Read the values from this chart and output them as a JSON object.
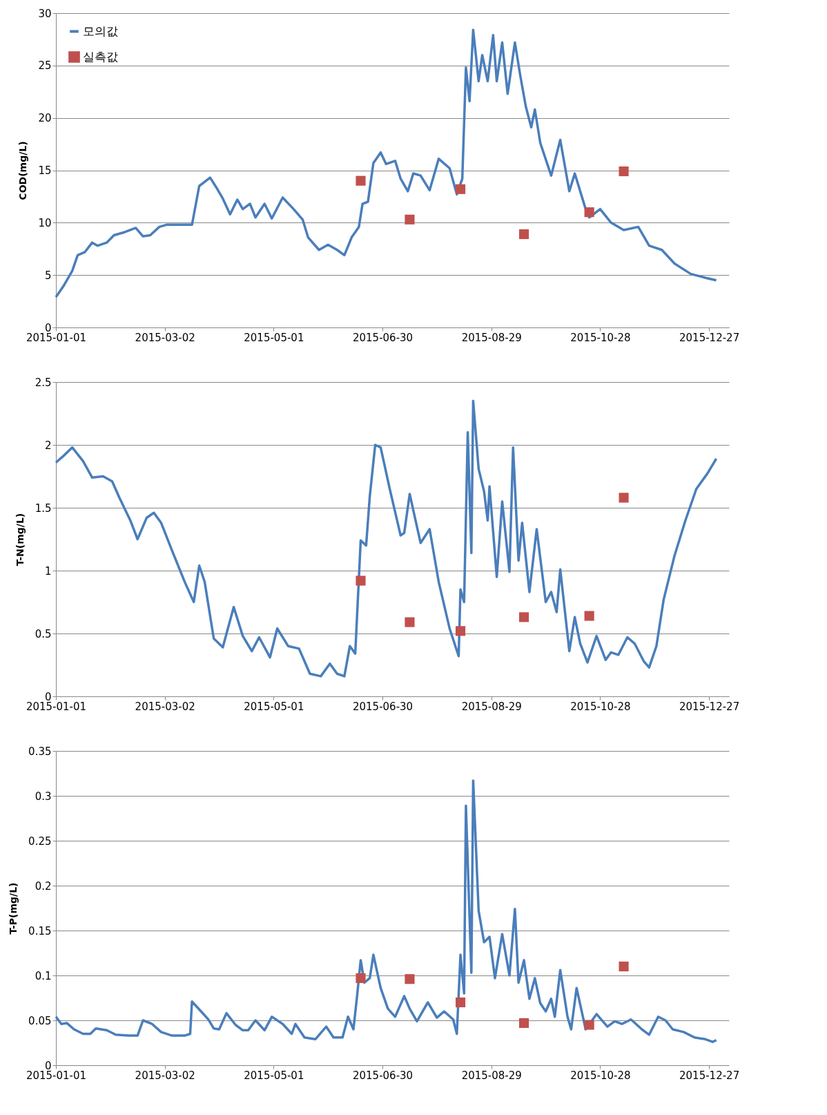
{
  "chart_data": [
    {
      "type": "line",
      "ylabel": "COD(mg/L)",
      "xlim": [
        "2015-01-01",
        "2016-01-07"
      ],
      "xticks": [
        "2015-01-01",
        "2015-03-02",
        "2015-05-01",
        "2015-06-30",
        "2015-08-29",
        "2015-10-28",
        "2015-12-27"
      ],
      "ylim": [
        0,
        30
      ],
      "yticks": [
        0,
        5,
        10,
        15,
        20,
        25,
        30
      ],
      "grid": "y",
      "legend": "top left",
      "series": [
        {
          "name": "모의값",
          "type": "line",
          "marker": "none",
          "color": "#4a7ebb",
          "x": [
            "2015-01-01",
            "2015-01-05",
            "2015-01-10",
            "2015-01-13",
            "2015-01-17",
            "2015-01-21",
            "2015-01-24",
            "2015-01-29",
            "2015-02-02",
            "2015-02-08",
            "2015-02-14",
            "2015-02-18",
            "2015-02-22",
            "2015-02-27",
            "2015-03-03",
            "2015-03-12",
            "2015-03-17",
            "2015-03-21",
            "2015-03-27",
            "2015-03-31",
            "2015-04-03",
            "2015-04-07",
            "2015-04-11",
            "2015-04-14",
            "2015-04-18",
            "2015-04-21",
            "2015-04-26",
            "2015-04-30",
            "2015-05-06",
            "2015-05-12",
            "2015-05-17",
            "2015-05-20",
            "2015-05-26",
            "2015-05-31",
            "2015-06-05",
            "2015-06-09",
            "2015-06-13",
            "2015-06-17",
            "2015-06-19",
            "2015-06-22",
            "2015-06-25",
            "2015-06-29",
            "2015-07-02",
            "2015-07-07",
            "2015-07-10",
            "2015-07-14",
            "2015-07-17",
            "2015-07-21",
            "2015-07-26",
            "2015-07-31",
            "2015-08-06",
            "2015-08-10",
            "2015-08-13",
            "2015-08-15",
            "2015-08-17",
            "2015-08-19",
            "2015-08-22",
            "2015-08-24",
            "2015-08-27",
            "2015-08-30",
            "2015-09-01",
            "2015-09-04",
            "2015-09-07",
            "2015-09-11",
            "2015-09-14",
            "2015-09-17",
            "2015-09-20",
            "2015-09-22",
            "2015-09-25",
            "2015-10-01",
            "2015-10-06",
            "2015-10-11",
            "2015-10-14",
            "2015-10-20",
            "2015-10-22",
            "2015-10-28",
            "2015-11-03",
            "2015-11-10",
            "2015-11-18",
            "2015-11-24",
            "2015-12-01",
            "2015-12-08",
            "2015-12-17",
            "2015-12-26",
            "2015-12-31"
          ],
          "values": [
            2.9,
            3.9,
            5.4,
            6.9,
            7.2,
            8.1,
            7.8,
            8.1,
            8.8,
            9.1,
            9.5,
            8.7,
            8.8,
            9.6,
            9.8,
            9.8,
            9.8,
            13.5,
            14.3,
            13.2,
            12.3,
            10.8,
            12.2,
            11.3,
            11.8,
            10.5,
            11.8,
            10.4,
            12.4,
            11.3,
            10.3,
            8.6,
            7.4,
            7.9,
            7.4,
            6.9,
            8.6,
            9.6,
            11.8,
            12.0,
            15.7,
            16.7,
            15.6,
            15.9,
            14.2,
            13.0,
            14.7,
            14.5,
            13.1,
            16.1,
            15.2,
            12.7,
            14.2,
            24.8,
            21.6,
            28.4,
            23.5,
            26.0,
            23.5,
            27.9,
            23.5,
            27.2,
            22.3,
            27.2,
            24.0,
            21.1,
            19.1,
            20.8,
            17.6,
            14.5,
            17.9,
            13.0,
            14.7,
            11.3,
            10.5,
            11.3,
            10.0,
            9.3,
            9.6,
            7.8,
            7.4,
            6.1,
            5.1,
            4.7,
            4.5
          ]
        },
        {
          "name": "실측값",
          "type": "scatter",
          "marker": "square",
          "color": "#c0504d",
          "x": [
            "2015-06-18",
            "2015-07-15",
            "2015-08-12",
            "2015-09-16",
            "2015-10-22",
            "2015-11-10"
          ],
          "values": [
            14.0,
            10.3,
            13.2,
            8.9,
            11.0,
            14.9
          ]
        }
      ]
    },
    {
      "type": "line",
      "ylabel": "T-N(mg/L)",
      "xlim": [
        "2015-01-01",
        "2016-01-07"
      ],
      "xticks": [
        "2015-01-01",
        "2015-03-02",
        "2015-05-01",
        "2015-06-30",
        "2015-08-29",
        "2015-10-28",
        "2015-12-27"
      ],
      "ylim": [
        0,
        2.5
      ],
      "yticks": [
        0,
        0.5,
        1,
        1.5,
        2,
        2.5
      ],
      "grid": "y",
      "legend": "top left",
      "series": [
        {
          "name": "모의값",
          "type": "line",
          "marker": "none",
          "color": "#4a7ebb",
          "x": [
            "2015-01-01",
            "2015-01-05",
            "2015-01-10",
            "2015-01-16",
            "2015-01-21",
            "2015-01-27",
            "2015-02-01",
            "2015-02-05",
            "2015-02-11",
            "2015-02-15",
            "2015-02-20",
            "2015-02-24",
            "2015-02-28",
            "2015-03-06",
            "2015-03-13",
            "2015-03-18",
            "2015-03-21",
            "2015-03-24",
            "2015-03-29",
            "2015-04-03",
            "2015-04-09",
            "2015-04-14",
            "2015-04-19",
            "2015-04-23",
            "2015-04-29",
            "2015-05-03",
            "2015-05-09",
            "2015-05-15",
            "2015-05-21",
            "2015-05-27",
            "2015-06-01",
            "2015-06-05",
            "2015-06-09",
            "2015-06-12",
            "2015-06-15",
            "2015-06-18",
            "2015-06-21",
            "2015-06-23",
            "2015-06-26",
            "2015-06-29",
            "2015-07-04",
            "2015-07-10",
            "2015-07-12",
            "2015-07-15",
            "2015-07-21",
            "2015-07-26",
            "2015-07-31",
            "2015-08-06",
            "2015-08-11",
            "2015-08-12",
            "2015-08-14",
            "2015-08-16",
            "2015-08-18",
            "2015-08-19",
            "2015-08-22",
            "2015-08-25",
            "2015-08-27",
            "2015-08-28",
            "2015-09-01",
            "2015-09-04",
            "2015-09-08",
            "2015-09-10",
            "2015-09-13",
            "2015-09-15",
            "2015-09-19",
            "2015-09-23",
            "2015-09-28",
            "2015-10-01",
            "2015-10-04",
            "2015-10-06",
            "2015-10-11",
            "2015-10-14",
            "2015-10-17",
            "2015-10-21",
            "2015-10-26",
            "2015-10-31",
            "2015-11-03",
            "2015-11-07",
            "2015-11-12",
            "2015-11-16",
            "2015-11-21",
            "2015-11-24",
            "2015-11-28",
            "2015-12-02",
            "2015-12-08",
            "2015-12-14",
            "2015-12-20",
            "2015-12-26",
            "2015-12-31"
          ],
          "values": [
            1.86,
            1.91,
            1.98,
            1.87,
            1.74,
            1.75,
            1.71,
            1.58,
            1.4,
            1.25,
            1.42,
            1.46,
            1.38,
            1.16,
            0.91,
            0.75,
            1.04,
            0.91,
            0.46,
            0.39,
            0.71,
            0.48,
            0.36,
            0.47,
            0.31,
            0.54,
            0.4,
            0.38,
            0.18,
            0.16,
            0.26,
            0.18,
            0.16,
            0.4,
            0.34,
            1.24,
            1.2,
            1.59,
            2.0,
            1.98,
            1.65,
            1.28,
            1.3,
            1.61,
            1.22,
            1.33,
            0.91,
            0.54,
            0.32,
            0.85,
            0.75,
            2.1,
            1.14,
            2.35,
            1.81,
            1.63,
            1.4,
            1.67,
            0.95,
            1.55,
            0.99,
            1.98,
            1.08,
            1.38,
            0.83,
            1.33,
            0.75,
            0.83,
            0.67,
            1.01,
            0.36,
            0.63,
            0.42,
            0.27,
            0.48,
            0.29,
            0.35,
            0.33,
            0.47,
            0.42,
            0.28,
            0.23,
            0.4,
            0.77,
            1.12,
            1.4,
            1.65,
            1.77,
            1.89
          ]
        },
        {
          "name": "실측값",
          "type": "scatter",
          "marker": "square",
          "color": "#c0504d",
          "x": [
            "2015-06-18",
            "2015-07-15",
            "2015-08-12",
            "2015-09-16",
            "2015-10-22",
            "2015-11-10"
          ],
          "values": [
            0.92,
            0.59,
            0.52,
            0.63,
            0.64,
            1.58
          ]
        }
      ]
    },
    {
      "type": "line",
      "ylabel": "T-P(mg/L)",
      "xlim": [
        "2015-01-01",
        "2016-01-07"
      ],
      "xticks": [
        "2015-01-01",
        "2015-03-02",
        "2015-05-01",
        "2015-06-30",
        "2015-08-29",
        "2015-10-28",
        "2015-12-27"
      ],
      "ylim": [
        0,
        0.35
      ],
      "yticks": [
        0,
        0.05,
        0.1,
        0.15,
        0.2,
        0.25,
        0.3,
        0.35
      ],
      "grid": "y",
      "legend": "top left",
      "series": [
        {
          "name": "모의값",
          "type": "line",
          "marker": "none",
          "color": "#4a7ebb",
          "x": [
            "2015-01-01",
            "2015-01-04",
            "2015-01-07",
            "2015-01-11",
            "2015-01-16",
            "2015-01-20",
            "2015-01-23",
            "2015-01-29",
            "2015-02-03",
            "2015-02-10",
            "2015-02-15",
            "2015-02-18",
            "2015-02-23",
            "2015-02-28",
            "2015-03-06",
            "2015-03-13",
            "2015-03-16",
            "2015-03-17",
            "2015-03-22",
            "2015-03-26",
            "2015-03-29",
            "2015-04-01",
            "2015-04-05",
            "2015-04-10",
            "2015-04-14",
            "2015-04-17",
            "2015-04-21",
            "2015-04-26",
            "2015-04-30",
            "2015-05-06",
            "2015-05-11",
            "2015-05-13",
            "2015-05-18",
            "2015-05-24",
            "2015-05-30",
            "2015-06-03",
            "2015-06-08",
            "2015-06-11",
            "2015-06-14",
            "2015-06-16",
            "2015-06-18",
            "2015-06-20",
            "2015-06-23",
            "2015-06-25",
            "2015-06-29",
            "2015-07-03",
            "2015-07-07",
            "2015-07-12",
            "2015-07-15",
            "2015-07-19",
            "2015-07-25",
            "2015-07-30",
            "2015-08-03",
            "2015-08-08",
            "2015-08-10",
            "2015-08-12",
            "2015-08-14",
            "2015-08-15",
            "2015-08-18",
            "2015-08-19",
            "2015-08-22",
            "2015-08-25",
            "2015-08-28",
            "2015-08-31",
            "2015-09-04",
            "2015-09-08",
            "2015-09-11",
            "2015-09-13",
            "2015-09-16",
            "2015-09-19",
            "2015-09-22",
            "2015-09-25",
            "2015-09-28",
            "2015-10-01",
            "2015-10-03",
            "2015-10-06",
            "2015-10-10",
            "2015-10-12",
            "2015-10-15",
            "2015-10-20",
            "2015-10-26",
            "2015-11-01",
            "2015-11-05",
            "2015-11-09",
            "2015-11-14",
            "2015-11-20",
            "2015-11-24",
            "2015-11-29",
            "2015-12-03",
            "2015-12-07",
            "2015-12-13",
            "2015-12-19",
            "2015-12-25",
            "2015-12-29",
            "2015-12-31"
          ],
          "values": [
            0.054,
            0.046,
            0.047,
            0.04,
            0.035,
            0.035,
            0.041,
            0.039,
            0.034,
            0.033,
            0.033,
            0.05,
            0.046,
            0.037,
            0.033,
            0.033,
            0.035,
            0.071,
            0.06,
            0.051,
            0.041,
            0.04,
            0.058,
            0.045,
            0.039,
            0.039,
            0.05,
            0.039,
            0.054,
            0.046,
            0.035,
            0.046,
            0.031,
            0.029,
            0.043,
            0.031,
            0.031,
            0.054,
            0.04,
            0.077,
            0.117,
            0.092,
            0.097,
            0.123,
            0.086,
            0.063,
            0.054,
            0.077,
            0.063,
            0.049,
            0.07,
            0.053,
            0.06,
            0.051,
            0.035,
            0.123,
            0.08,
            0.289,
            0.103,
            0.317,
            0.172,
            0.137,
            0.143,
            0.097,
            0.146,
            0.1,
            0.174,
            0.092,
            0.117,
            0.074,
            0.097,
            0.069,
            0.06,
            0.074,
            0.054,
            0.106,
            0.054,
            0.04,
            0.086,
            0.04,
            0.057,
            0.043,
            0.049,
            0.046,
            0.051,
            0.04,
            0.034,
            0.054,
            0.05,
            0.04,
            0.037,
            0.031,
            0.029,
            0.026,
            0.028
          ]
        },
        {
          "name": "실측값",
          "type": "scatter",
          "marker": "square",
          "color": "#c0504d",
          "x": [
            "2015-06-18",
            "2015-07-15",
            "2015-08-12",
            "2015-09-16",
            "2015-10-22",
            "2015-11-10"
          ],
          "values": [
            0.097,
            0.096,
            0.07,
            0.047,
            0.045,
            0.11
          ]
        }
      ]
    }
  ]
}
